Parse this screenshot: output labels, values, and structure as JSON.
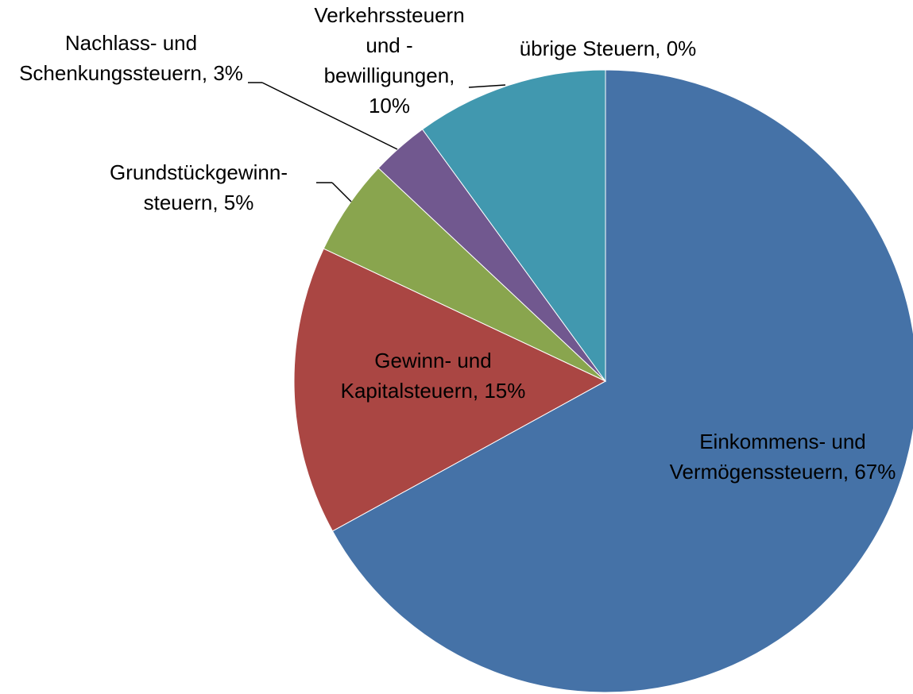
{
  "chart_data": {
    "type": "pie",
    "categories": [
      "Einkommens- und Vermögenssteuern",
      "Gewinn- und Kapitalsteuern",
      "Grundstückgewinn-steuern",
      "Nachlass- und Schenkungssteuern",
      "Verkehrssteuern und -bewilligungen",
      "übrige Steuern"
    ],
    "values": [
      67,
      15,
      5,
      3,
      10,
      0
    ],
    "value_labels": [
      "67%",
      "15%",
      "5%",
      "3%",
      "10%",
      "0%"
    ],
    "label_separator": ", ",
    "colors": [
      "#4572a7",
      "#aa4643",
      "#89a54e",
      "#71588f",
      "#4198af",
      "#db843d"
    ]
  }
}
